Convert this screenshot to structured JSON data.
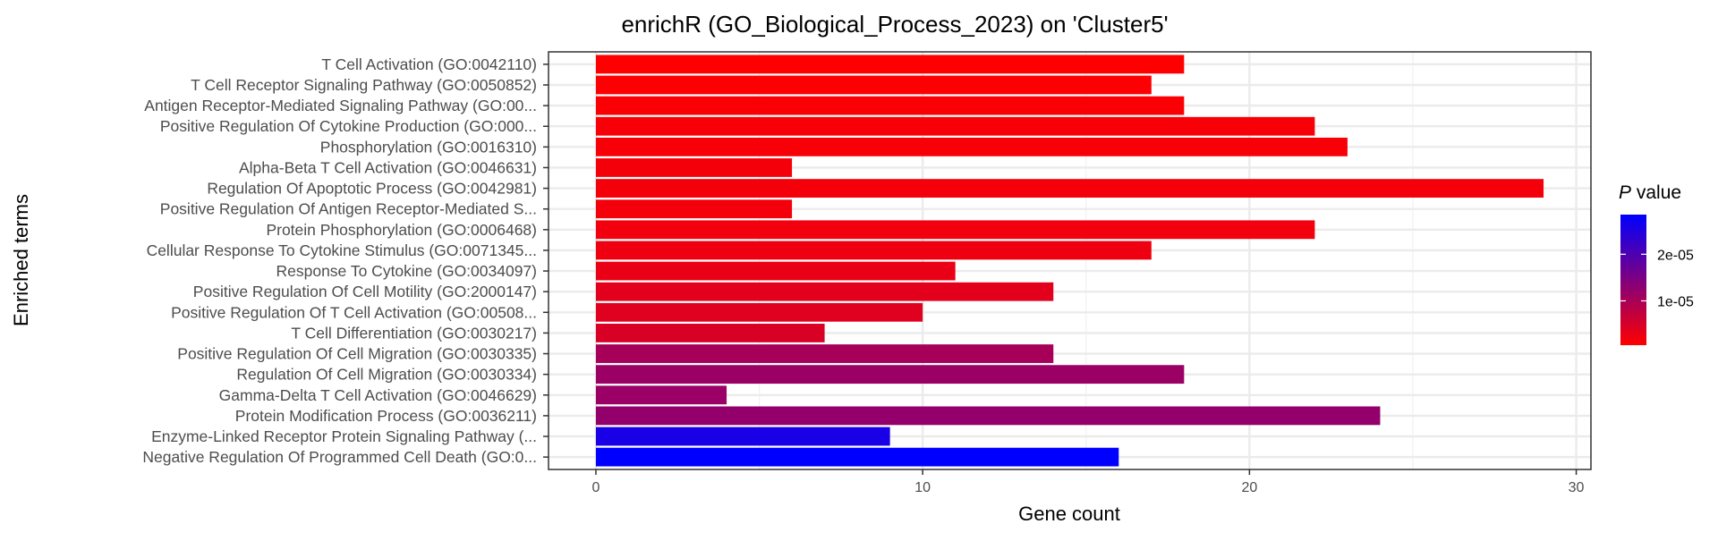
{
  "chart_data": {
    "type": "bar",
    "orientation": "horizontal",
    "title": "enrichR (GO_Biological_Process_2023) on 'Cluster5'",
    "xlabel": "Gene count",
    "ylabel": "Enriched terms",
    "xlim": [
      -1.45,
      30.45
    ],
    "xticks": [
      0,
      10,
      20,
      30
    ],
    "xtick_labels": [
      "0",
      "10",
      "20",
      "30"
    ],
    "grid": true,
    "legend_position": "right",
    "categories": [
      "T Cell Activation (GO:0042110)",
      "T Cell Receptor Signaling Pathway (GO:0050852)",
      "Antigen Receptor-Mediated Signaling Pathway (GO:00...",
      "Positive Regulation Of Cytokine Production (GO:000...",
      "Phosphorylation (GO:0016310)",
      "Alpha-Beta T Cell Activation (GO:0046631)",
      "Regulation Of Apoptotic Process (GO:0042981)",
      "Positive Regulation Of Antigen Receptor-Mediated S...",
      "Protein Phosphorylation (GO:0006468)",
      "Cellular Response To Cytokine Stimulus (GO:0071345...",
      "Response To Cytokine (GO:0034097)",
      "Positive Regulation Of Cell Motility (GO:2000147)",
      "Positive Regulation Of T Cell Activation (GO:00508...",
      "T Cell Differentiation (GO:0030217)",
      "Positive Regulation Of Cell Migration (GO:0030335)",
      "Regulation Of Cell Migration (GO:0030334)",
      "Gamma-Delta T Cell Activation (GO:0046629)",
      "Protein Modification Process (GO:0036211)",
      "Enzyme-Linked Receptor Protein Signaling Pathway (...",
      "Negative Regulation Of Programmed Cell Death (GO:0..."
    ],
    "values": [
      18,
      17,
      18,
      22,
      23,
      6,
      29,
      6,
      22,
      17,
      11,
      14,
      10,
      7,
      14,
      18,
      4,
      24,
      9,
      16
    ],
    "p_values": [
      5e-07,
      8e-07,
      1e-06,
      1.3e-06,
      1.3e-06,
      1.7e-06,
      1.7e-06,
      1.8e-06,
      1.9e-06,
      2.3e-06,
      2.9e-06,
      3.6e-06,
      3.9e-06,
      4.7e-06,
      1.03e-05,
      1.15e-05,
      1.16e-05,
      1.23e-05,
      2.58e-05,
      2.85e-05
    ],
    "color_scale": {
      "title_italic": "P",
      "title_rest": " value",
      "low_color": "#ff0000",
      "high_color": "#0000ff",
      "min": 5e-07,
      "max": 2.85e-05,
      "ticks": [
        1e-05,
        2e-05
      ],
      "tick_labels": [
        "1e-05",
        "2e-05"
      ]
    }
  }
}
